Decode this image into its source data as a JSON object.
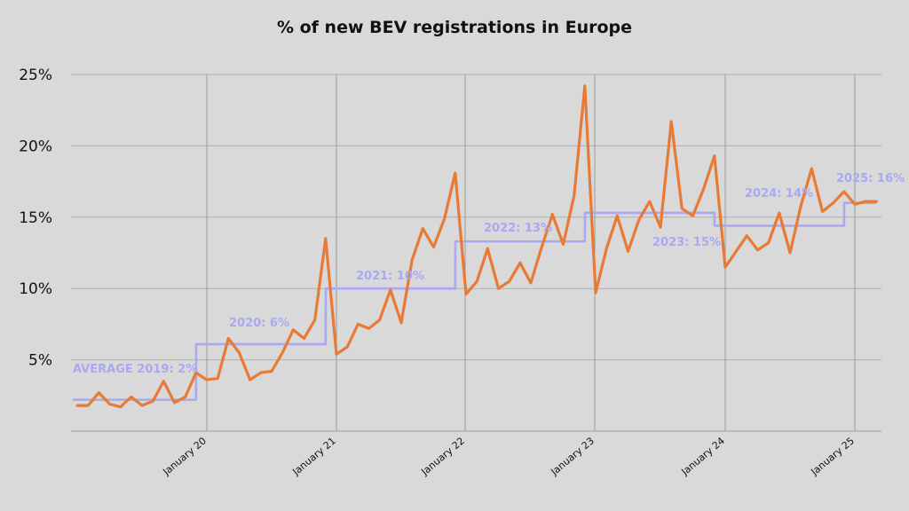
{
  "chart_data": {
    "type": "line",
    "title": "% of new BEV registrations in Europe",
    "ylim": [
      0,
      25
    ],
    "y_ticks": [
      "5%",
      "10%",
      "15%",
      "20%",
      "25%"
    ],
    "x_ticks": [
      "January 20",
      "January 21",
      "January 22",
      "January 23",
      "January 24",
      "January 25"
    ],
    "grid": true,
    "series": [
      {
        "style": "monthly",
        "color": "#e87a35",
        "start_month": "2019-01",
        "values": [
          1.8,
          1.8,
          2.7,
          1.9,
          1.7,
          2.4,
          1.8,
          2.1,
          3.5,
          2.0,
          2.4,
          4.1,
          3.6,
          3.7,
          6.5,
          5.5,
          3.6,
          4.1,
          4.2,
          5.5,
          7.1,
          6.5,
          7.8,
          13.5,
          5.4,
          5.9,
          7.5,
          7.2,
          7.8,
          9.9,
          7.6,
          12.0,
          14.2,
          12.9,
          14.9,
          18.1,
          9.6,
          10.5,
          12.8,
          10.0,
          10.5,
          11.8,
          10.4,
          12.9,
          15.2,
          13.1,
          16.5,
          24.2,
          9.7,
          12.8,
          15.1,
          12.6,
          14.8,
          16.1,
          14.3,
          21.7,
          15.6,
          15.1,
          17.0,
          19.3,
          11.5,
          12.6,
          13.7,
          12.7,
          13.2,
          15.3,
          12.5,
          15.8,
          18.4,
          15.4,
          16.0,
          16.8,
          15.9,
          16.1,
          16.1
        ]
      },
      {
        "style": "annual-average",
        "color": "#a9a8f2",
        "points": [
          {
            "year": 2019,
            "value": 2.2,
            "label": "AVERAGE 2019: 2%"
          },
          {
            "year": 2020,
            "value": 6.1,
            "label": "2020: 6%"
          },
          {
            "year": 2021,
            "value": 10.0,
            "label": "2021: 10%"
          },
          {
            "year": 2022,
            "value": 13.3,
            "label": "2022: 13%"
          },
          {
            "year": 2023,
            "value": 15.3,
            "label": "2023: 15%"
          },
          {
            "year": 2024,
            "value": 14.4,
            "label": "2024: 14%"
          },
          {
            "year": 2025,
            "value": 16.0,
            "label": "2025: 16%"
          }
        ]
      }
    ]
  }
}
